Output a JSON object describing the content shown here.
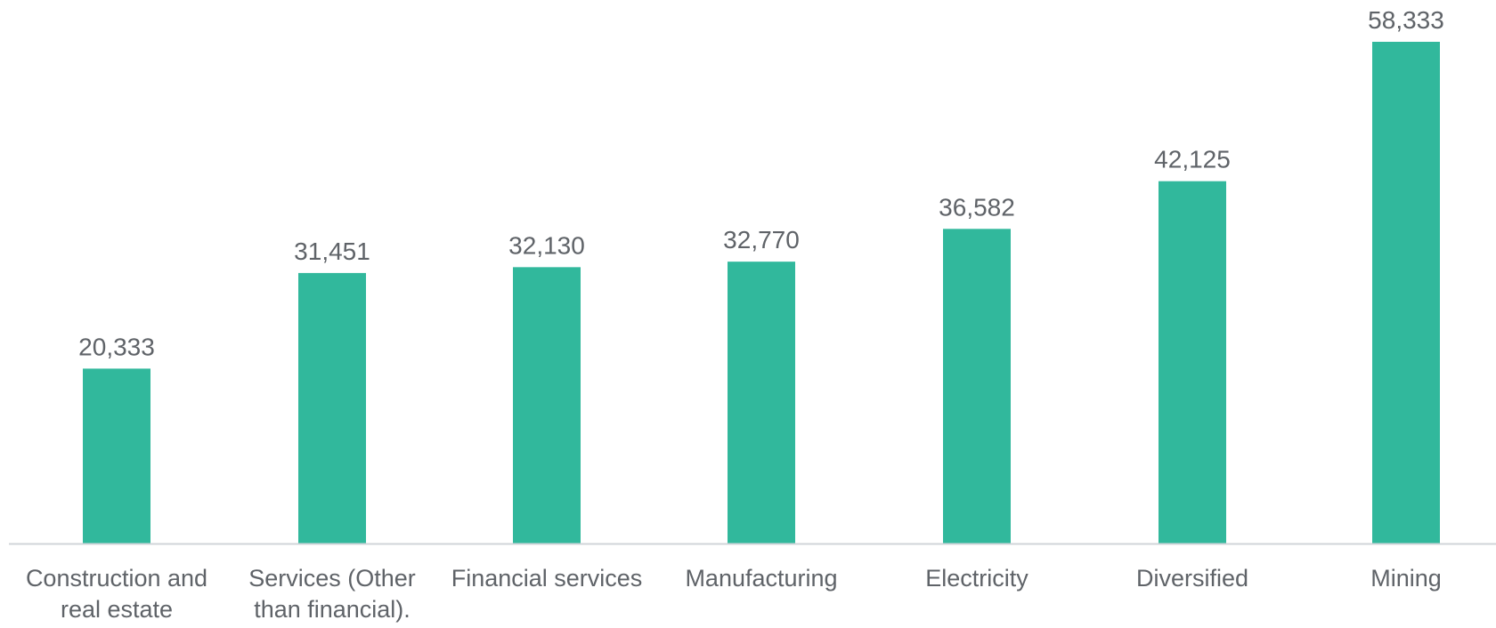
{
  "chart_data": {
    "type": "bar",
    "title": "",
    "xlabel": "",
    "ylabel": "",
    "categories": [
      [
        "Construction and",
        "real estate"
      ],
      [
        "Services (Other",
        "than financial)."
      ],
      [
        "Financial services"
      ],
      [
        "Manufacturing"
      ],
      [
        "Electricity"
      ],
      [
        "Diversified"
      ],
      [
        "Mining"
      ]
    ],
    "values": [
      20333,
      31451,
      32130,
      32770,
      36582,
      42125,
      58333
    ],
    "value_labels": [
      "20,333",
      "31,451",
      "32,130",
      "32,770",
      "36,582",
      "42,125",
      "58,333"
    ],
    "ylim": [
      0,
      58333
    ],
    "grid": false,
    "legend": "none",
    "colors": {
      "bar": "#31b89c",
      "axis": "#d0d4d9",
      "label": "#5f6368"
    }
  }
}
